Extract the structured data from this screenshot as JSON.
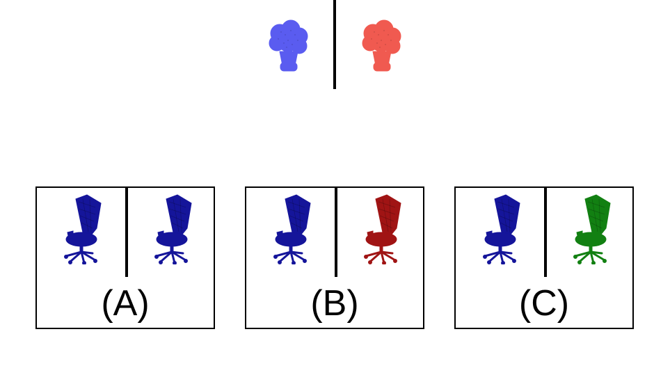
{
  "top_pair": {
    "left_color": "#5a5cf0",
    "right_color": "#f05a50"
  },
  "options": [
    {
      "label": "(A)",
      "left_chair_color": "#15159a",
      "right_chair_color": "#15159a"
    },
    {
      "label": "(B)",
      "left_chair_color": "#15159a",
      "right_chair_color": "#a01414"
    },
    {
      "label": "(C)",
      "left_chair_color": "#15159a",
      "right_chair_color": "#128012"
    }
  ]
}
